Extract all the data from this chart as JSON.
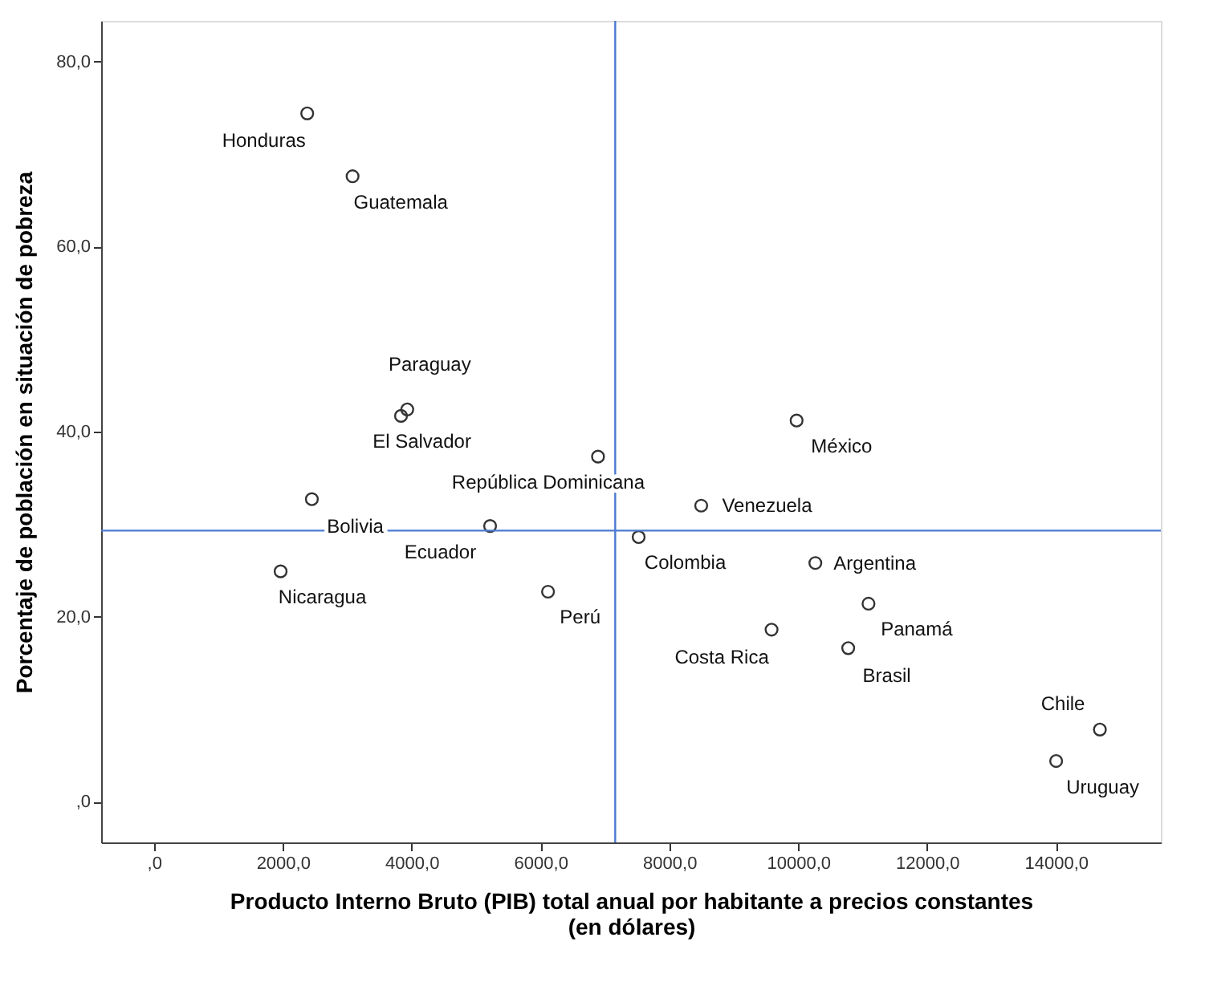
{
  "chart_data": {
    "type": "scatter",
    "xlabel": "Producto Interno Bruto (PIB) total anual por habitante a precios constantes\n(en dólares)",
    "ylabel": "Porcentaje de población en situación de pobreza",
    "x": [
      2379,
      3083,
      3932,
      3835,
      6893,
      2451,
      5218,
      1966,
      6117,
      9976,
      8495,
      7524,
      10267,
      11092,
      9587,
      10777,
      14684,
      14005
    ],
    "series": [
      {
        "color": "#333333",
        "values": [
          74.4,
          67.6,
          42.4,
          41.7,
          37.3,
          32.7,
          29.8,
          24.9,
          22.7,
          41.2,
          32.0,
          28.6,
          25.8,
          21.4,
          18.6,
          16.6,
          7.8,
          4.4
        ]
      }
    ],
    "value_labels": [
      "Honduras",
      "Guatemala",
      "Paraguay",
      "El Salvador",
      "República Dominicana",
      "Bolivia",
      "Ecuador",
      "Nicaragua",
      "Perú",
      "México",
      "Venezuela",
      "Colombia",
      "Argentina",
      "Panamá",
      "Costa Rica",
      "Brasil",
      "Chile",
      "Uruguay"
    ],
    "xlim": [
      -820,
      15630
    ],
    "ylim": [
      -4.4,
      84.4
    ],
    "xticks": [
      {
        "value": 0,
        "label": ",0"
      },
      {
        "value": 2000,
        "label": "2000,0"
      },
      {
        "value": 4000,
        "label": "4000,0"
      },
      {
        "value": 6000,
        "label": "6000,0"
      },
      {
        "value": 8000,
        "label": "8000,0"
      },
      {
        "value": 10000,
        "label": "10000,0"
      },
      {
        "value": 12000,
        "label": "12000,0"
      },
      {
        "value": 14000,
        "label": "14000,0"
      }
    ],
    "yticks": [
      {
        "value": 0,
        "label": ",0"
      },
      {
        "value": 20,
        "label": "20,0"
      },
      {
        "value": 40,
        "label": "40,0"
      },
      {
        "value": 60,
        "label": "60,0"
      },
      {
        "value": 80,
        "label": "80,0"
      }
    ],
    "ref_lines": [
      {
        "axis": "x",
        "value": 7160,
        "color": "#4a7bd0"
      },
      {
        "axis": "y",
        "value": 29.3,
        "color": "#4a7bd0"
      }
    ],
    "grid": false
  }
}
